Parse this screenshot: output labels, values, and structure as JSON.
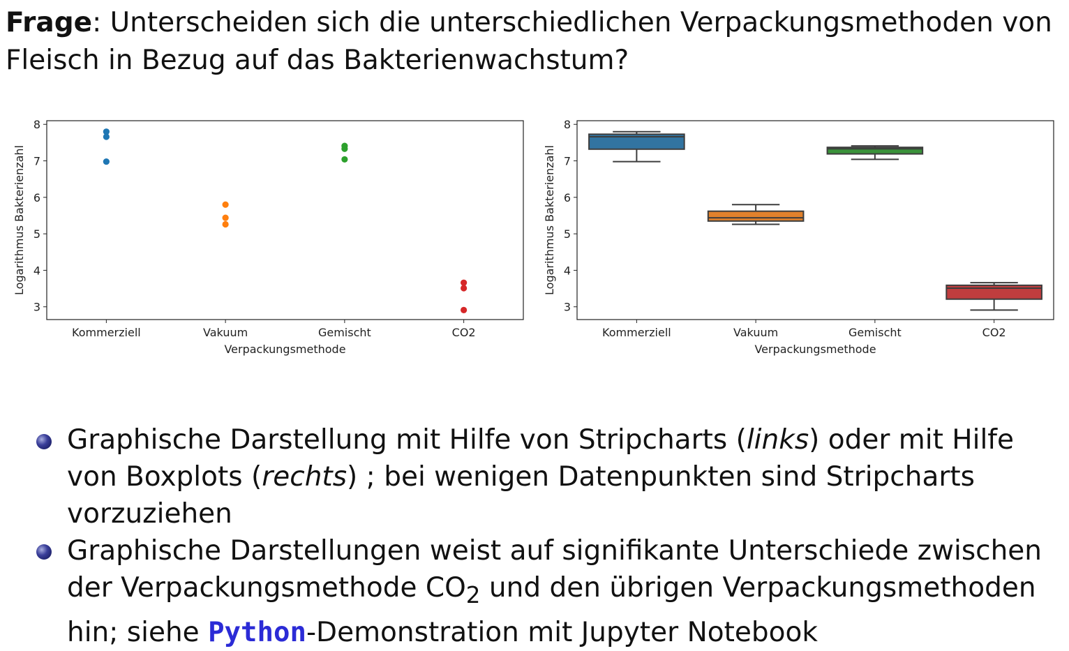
{
  "question": {
    "label": "Frage",
    "text": ": Unterscheiden sich die unterschiedlichen Verpackungsmethoden von Fleisch in Bezug auf das Bakterienwachstum?"
  },
  "bullets": [
    {
      "part1": "Graphische Darstellung mit Hilfe von Stripcharts (",
      "em1": "links",
      "part2": ") oder mit Hilfe von Boxplots (",
      "em2": "rechts",
      "part3": ") ; bei wenigen Datenpunkten sind Stripcharts vorzuziehen"
    },
    {
      "part1": "Graphische Darstellungen weist auf signifikante Unterschiede zwischen der Verpackungsmethode CO",
      "sub": "2",
      "part2": " und den übrigen Verpackungsmethoden hin; siehe ",
      "code": "Python",
      "part3": "-Demonstration mit Jupyter Notebook"
    }
  ],
  "chart_data": [
    {
      "type": "scatter",
      "categories": [
        "Kommerziell",
        "Vakuum",
        "Gemischt",
        "CO2"
      ],
      "series": [
        {
          "category": "Kommerziell",
          "color": "#1f77b4",
          "values": [
            7.66,
            7.8,
            6.98
          ]
        },
        {
          "category": "Vakuum",
          "color": "#ff7f0e",
          "values": [
            5.26,
            5.44,
            5.8
          ]
        },
        {
          "category": "Gemischt",
          "color": "#2ca02c",
          "values": [
            7.41,
            7.33,
            7.04
          ]
        },
        {
          "category": "CO2",
          "color": "#d62728",
          "values": [
            3.51,
            2.91,
            3.66
          ]
        }
      ],
      "xlabel": "Verpackungsmethode",
      "ylabel": "Logarithmus Bakterienzahl",
      "ylim": [
        2.65,
        8.1
      ],
      "yticks": [
        3,
        4,
        5,
        6,
        7,
        8
      ]
    },
    {
      "type": "box",
      "categories": [
        "Kommerziell",
        "Vakuum",
        "Gemischt",
        "CO2"
      ],
      "boxes": [
        {
          "category": "Kommerziell",
          "color": "#3274a1",
          "min": 6.98,
          "q1": 7.32,
          "median": 7.66,
          "q3": 7.73,
          "max": 7.8
        },
        {
          "category": "Vakuum",
          "color": "#e1812c",
          "min": 5.26,
          "q1": 5.35,
          "median": 5.44,
          "q3": 5.62,
          "max": 5.8
        },
        {
          "category": "Gemischt",
          "color": "#3a923a",
          "min": 7.04,
          "q1": 7.19,
          "median": 7.33,
          "q3": 7.37,
          "max": 7.41
        },
        {
          "category": "CO2",
          "color": "#c03d3e",
          "min": 2.91,
          "q1": 3.21,
          "median": 3.51,
          "q3": 3.59,
          "max": 3.66
        }
      ],
      "xlabel": "Verpackungsmethode",
      "ylabel": "Logarithmus Bakterienzahl",
      "ylim": [
        2.65,
        8.1
      ],
      "yticks": [
        3,
        4,
        5,
        6,
        7,
        8
      ]
    }
  ]
}
